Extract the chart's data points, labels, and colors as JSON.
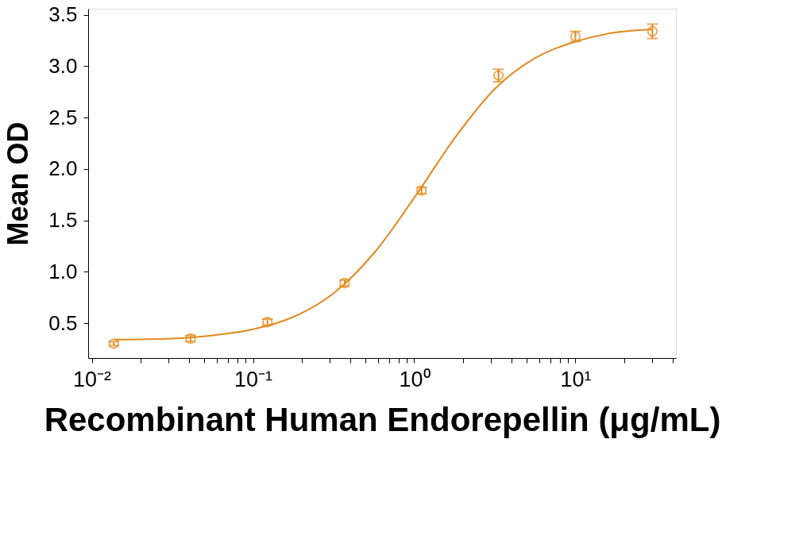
{
  "chart_data": {
    "type": "scatter",
    "xlabel": "Recombinant Human Endorepellin (μg/mL)",
    "ylabel": "Mean OD",
    "log": "x",
    "grid": false,
    "xlim": [
      0.0095,
      42
    ],
    "ylim": [
      0.16,
      3.56
    ],
    "xticks": [
      {
        "value": 0.01,
        "label": "10⁻²"
      },
      {
        "value": 0.02,
        "label": null
      },
      {
        "value": 0.03,
        "label": null
      },
      {
        "value": 0.04,
        "label": null
      },
      {
        "value": 0.05,
        "label": null
      },
      {
        "value": 0.06,
        "label": null
      },
      {
        "value": 0.07,
        "label": null
      },
      {
        "value": 0.08,
        "label": null
      },
      {
        "value": 0.09,
        "label": null
      },
      {
        "value": 0.1,
        "label": "10⁻¹"
      },
      {
        "value": 0.2,
        "label": null
      },
      {
        "value": 0.3,
        "label": null
      },
      {
        "value": 0.4,
        "label": null
      },
      {
        "value": 0.5,
        "label": null
      },
      {
        "value": 0.6,
        "label": null
      },
      {
        "value": 0.7,
        "label": null
      },
      {
        "value": 0.8,
        "label": null
      },
      {
        "value": 0.9,
        "label": null
      },
      {
        "value": 1,
        "label": "10⁰"
      },
      {
        "value": 2,
        "label": null
      },
      {
        "value": 3,
        "label": null
      },
      {
        "value": 4,
        "label": null
      },
      {
        "value": 5,
        "label": null
      },
      {
        "value": 6,
        "label": null
      },
      {
        "value": 7,
        "label": null
      },
      {
        "value": 8,
        "label": null
      },
      {
        "value": 9,
        "label": null
      },
      {
        "value": 10,
        "label": "10¹"
      },
      {
        "value": 20,
        "label": null
      },
      {
        "value": 30,
        "label": null
      },
      {
        "value": 40,
        "label": null
      }
    ],
    "yticks": [
      0.5,
      {
        "value": 1,
        "label": "1.0"
      },
      1.5,
      {
        "value": 2,
        "label": "2.0"
      },
      2.5,
      {
        "value": 3,
        "label": "3.0"
      },
      3.5
    ],
    "series": [
      {
        "color": "#e08a1e",
        "marker": "circle",
        "x": [
          0.0137,
          0.041,
          0.123,
          0.37,
          1.11,
          3.33,
          10,
          30
        ],
        "values": [
          0.3,
          0.35,
          0.51,
          0.89,
          1.79,
          2.91,
          3.29,
          3.34
        ],
        "errors": [
          0.02,
          0.03,
          0.03,
          0.03,
          0.03,
          0.06,
          0.05,
          0.07
        ]
      },
      {
        "type": "line",
        "color": "#e08a1e",
        "x": [
          0.0138,
          0.0316,
          0.0562,
          0.1,
          0.178,
          0.316,
          0.562,
          1,
          1.78,
          3.16,
          5.62,
          10,
          17.8,
          30.2
        ],
        "values": [
          0.34,
          0.35,
          0.38,
          0.44,
          0.56,
          0.79,
          1.18,
          1.72,
          2.3,
          2.78,
          3.08,
          3.24,
          3.33,
          3.36
        ]
      }
    ]
  }
}
